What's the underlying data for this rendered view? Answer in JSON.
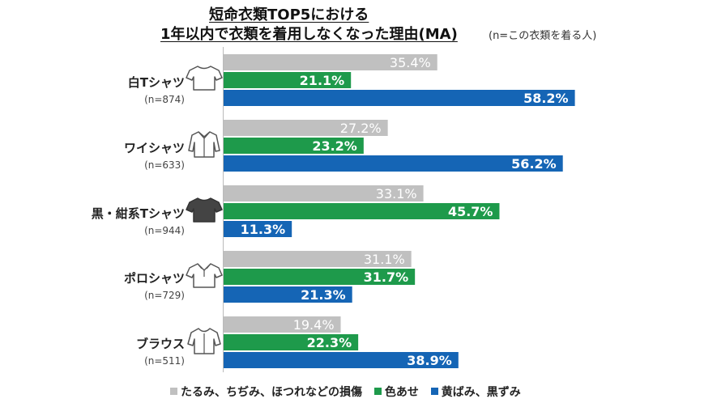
{
  "title": {
    "line1": "短命衣類TOP5における",
    "line2": "1年以内で衣類を着用しなくなった理由(MA)",
    "note": "(n=この衣類を着る人)"
  },
  "colors": {
    "damage": "#c0c0c0",
    "fade": "#1e9a4b",
    "yellow": "#1565b5"
  },
  "chart_data": {
    "type": "bar",
    "orientation": "horizontal",
    "categories": [
      "白Tシャツ",
      "ワイシャツ",
      "黒・紺系Tシャツ",
      "ポロシャツ",
      "ブラウス"
    ],
    "category_n": [
      "(n=874)",
      "(n=633)",
      "(n=944)",
      "(n=729)",
      "(n=511)"
    ],
    "category_icons": [
      "tshirt-white-icon",
      "dress-shirt-icon",
      "tshirt-black-icon",
      "polo-shirt-icon",
      "blouse-icon"
    ],
    "series": [
      {
        "name": "たるみ、ちぢみ、ほつれなどの損傷",
        "values": [
          35.4,
          27.2,
          33.1,
          31.1,
          19.4
        ],
        "labels": [
          "35.4%",
          "27.2%",
          "33.1%",
          "31.1%",
          "19.4%"
        ]
      },
      {
        "name": "色あせ",
        "values": [
          21.1,
          23.2,
          45.7,
          31.7,
          22.3
        ],
        "labels": [
          "21.1%",
          "23.2%",
          "45.7%",
          "31.7%",
          "22.3%"
        ]
      },
      {
        "name": "黄ばみ、黒ずみ",
        "values": [
          58.2,
          56.2,
          11.3,
          21.3,
          38.9
        ],
        "labels": [
          "58.2%",
          "56.2%",
          "11.3%",
          "21.3%",
          "38.9%"
        ]
      }
    ],
    "unit": "%",
    "xlim": [
      0,
      100
    ],
    "legend_position": "bottom"
  }
}
